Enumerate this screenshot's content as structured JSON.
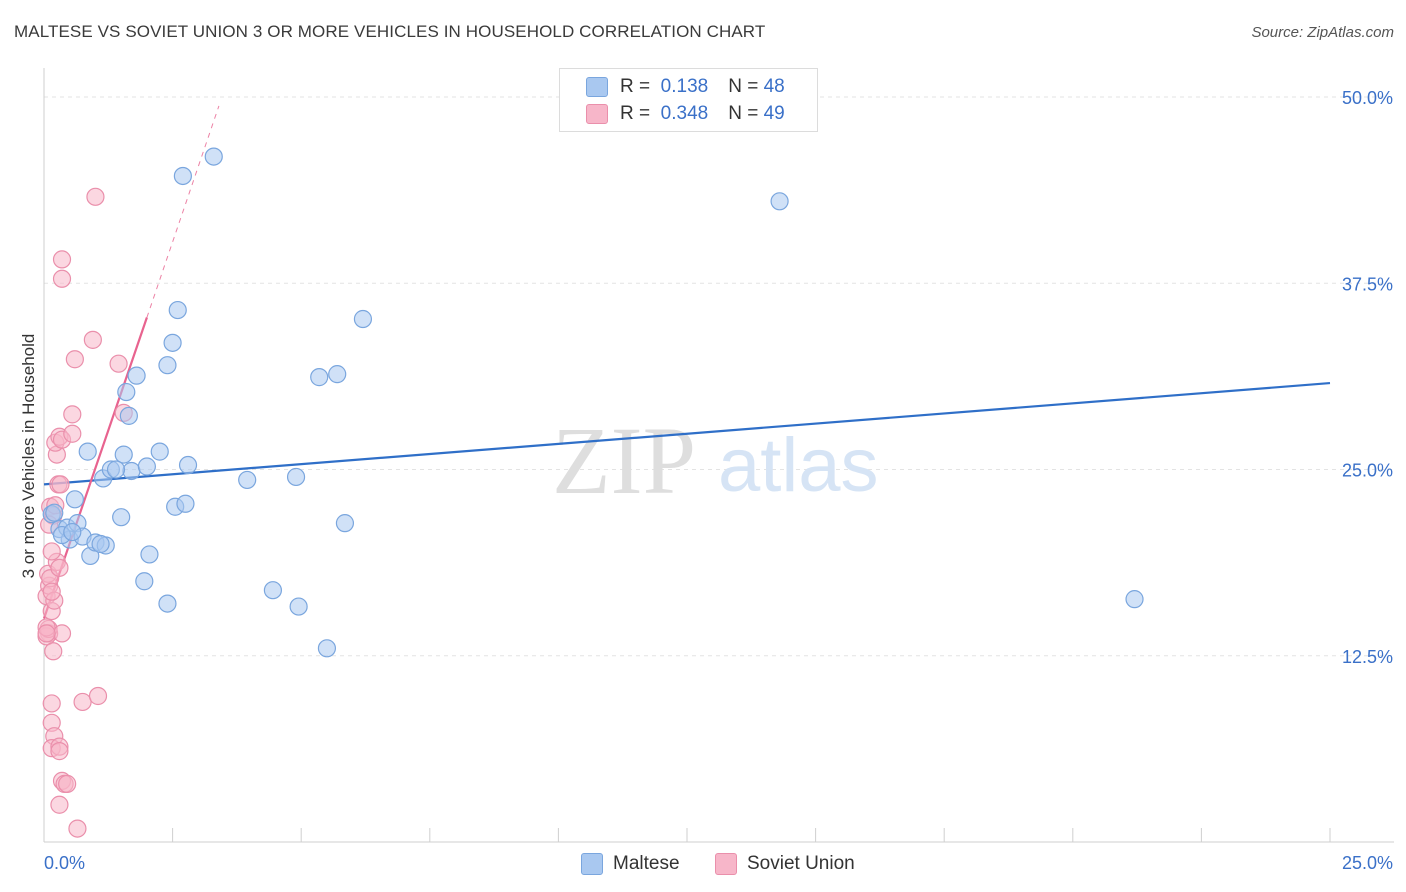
{
  "title": "MALTESE VS SOVIET UNION 3 OR MORE VEHICLES IN HOUSEHOLD CORRELATION CHART",
  "source": "Source: ZipAtlas.com",
  "watermark": {
    "zip": "ZIP",
    "atlas": "atlas"
  },
  "legend": {
    "r_label": "R =",
    "n_label": "N =",
    "rows": [
      {
        "name": "Maltese",
        "r": "0.138",
        "n": "48",
        "color": "#a9c8f0",
        "stroke": "#7aa6de"
      },
      {
        "name": "Soviet Union",
        "r": "0.348",
        "n": "49",
        "color": "#f7b6c9",
        "stroke": "#ea8fab"
      }
    ]
  },
  "chart_data": {
    "type": "scatter",
    "title": "MALTESE VS SOVIET UNION 3 OR MORE VEHICLES IN HOUSEHOLD CORRELATION CHART",
    "xlabel": "",
    "ylabel": "3 or more Vehicles in Household",
    "xlim": [
      0,
      25
    ],
    "ylim": [
      0,
      51.5
    ],
    "x_tick_labels": [
      "0.0%",
      "25.0%"
    ],
    "y_ticks": [
      12.5,
      25.0,
      37.5,
      50.0
    ],
    "y_tick_labels": [
      "12.5%",
      "25.0%",
      "37.5%",
      "50.0%"
    ],
    "grid": true,
    "legend_position": "top-center",
    "series": [
      {
        "name": "Maltese",
        "color": "#7aa6de",
        "fill": "#a9c8f0",
        "trend_color": "#2f6fc8",
        "trend": {
          "x": [
            0.0,
            25.0
          ],
          "y": [
            24.0,
            30.8
          ]
        },
        "points": [
          [
            0.15,
            22.0
          ],
          [
            0.3,
            21.0
          ],
          [
            0.45,
            21.1
          ],
          [
            0.65,
            21.4
          ],
          [
            0.6,
            23.0
          ],
          [
            0.5,
            20.3
          ],
          [
            0.35,
            20.6
          ],
          [
            0.75,
            20.5
          ],
          [
            0.9,
            19.2
          ],
          [
            1.0,
            20.1
          ],
          [
            1.2,
            19.9
          ],
          [
            0.85,
            26.2
          ],
          [
            1.15,
            24.4
          ],
          [
            1.3,
            25.0
          ],
          [
            1.5,
            21.8
          ],
          [
            1.55,
            26.0
          ],
          [
            1.7,
            24.9
          ],
          [
            1.6,
            30.2
          ],
          [
            1.65,
            28.6
          ],
          [
            1.8,
            31.3
          ],
          [
            1.95,
            17.5
          ],
          [
            2.0,
            25.2
          ],
          [
            2.05,
            19.3
          ],
          [
            2.25,
            26.2
          ],
          [
            2.4,
            16.0
          ],
          [
            2.4,
            32.0
          ],
          [
            2.5,
            33.5
          ],
          [
            2.55,
            22.5
          ],
          [
            2.6,
            35.7
          ],
          [
            2.75,
            22.7
          ],
          [
            2.8,
            25.3
          ],
          [
            2.7,
            44.7
          ],
          [
            3.3,
            46.0
          ],
          [
            3.95,
            24.3
          ],
          [
            4.45,
            16.9
          ],
          [
            4.9,
            24.5
          ],
          [
            4.95,
            15.8
          ],
          [
            5.35,
            31.2
          ],
          [
            5.5,
            13.0
          ],
          [
            5.7,
            31.4
          ],
          [
            5.85,
            21.4
          ],
          [
            6.2,
            35.1
          ],
          [
            14.3,
            43.0
          ],
          [
            21.2,
            16.3
          ],
          [
            1.4,
            25.0
          ],
          [
            0.2,
            22.1
          ],
          [
            1.1,
            20.0
          ],
          [
            0.55,
            20.8
          ]
        ]
      },
      {
        "name": "Soviet Union",
        "color": "#ea8fab",
        "fill": "#f7b6c9",
        "trend_color": "#e8638f",
        "trend": {
          "x": [
            0.0,
            2.0
          ],
          "y": [
            15.0,
            35.2
          ]
        },
        "trend_dashed": {
          "x": [
            2.0,
            3.4
          ],
          "y": [
            35.2,
            49.4
          ]
        },
        "points": [
          [
            0.05,
            16.5
          ],
          [
            0.1,
            17.2
          ],
          [
            0.08,
            18.0
          ],
          [
            0.12,
            17.7
          ],
          [
            0.15,
            15.5
          ],
          [
            0.1,
            14.0
          ],
          [
            0.05,
            13.8
          ],
          [
            0.09,
            14.3
          ],
          [
            0.18,
            12.8
          ],
          [
            0.2,
            16.2
          ],
          [
            0.25,
            18.8
          ],
          [
            0.15,
            19.5
          ],
          [
            0.3,
            18.4
          ],
          [
            0.12,
            22.5
          ],
          [
            0.18,
            21.9
          ],
          [
            0.1,
            21.3
          ],
          [
            0.22,
            22.6
          ],
          [
            0.28,
            24.0
          ],
          [
            0.32,
            24.0
          ],
          [
            0.25,
            26.0
          ],
          [
            0.22,
            26.8
          ],
          [
            0.3,
            27.2
          ],
          [
            0.35,
            27.0
          ],
          [
            0.55,
            27.4
          ],
          [
            0.55,
            28.7
          ],
          [
            0.6,
            32.4
          ],
          [
            0.35,
            39.1
          ],
          [
            0.35,
            37.8
          ],
          [
            1.0,
            43.3
          ],
          [
            0.95,
            33.7
          ],
          [
            1.45,
            32.1
          ],
          [
            1.55,
            28.8
          ],
          [
            0.15,
            9.3
          ],
          [
            0.15,
            8.0
          ],
          [
            0.2,
            7.1
          ],
          [
            0.15,
            6.3
          ],
          [
            0.3,
            6.4
          ],
          [
            0.3,
            6.1
          ],
          [
            0.35,
            4.1
          ],
          [
            0.4,
            3.9
          ],
          [
            0.45,
            3.9
          ],
          [
            0.3,
            2.5
          ],
          [
            0.65,
            0.9
          ],
          [
            0.75,
            9.4
          ],
          [
            1.05,
            9.8
          ],
          [
            0.35,
            14.0
          ],
          [
            0.05,
            14.4
          ],
          [
            0.15,
            16.8
          ],
          [
            0.05,
            14.0
          ]
        ]
      }
    ]
  }
}
